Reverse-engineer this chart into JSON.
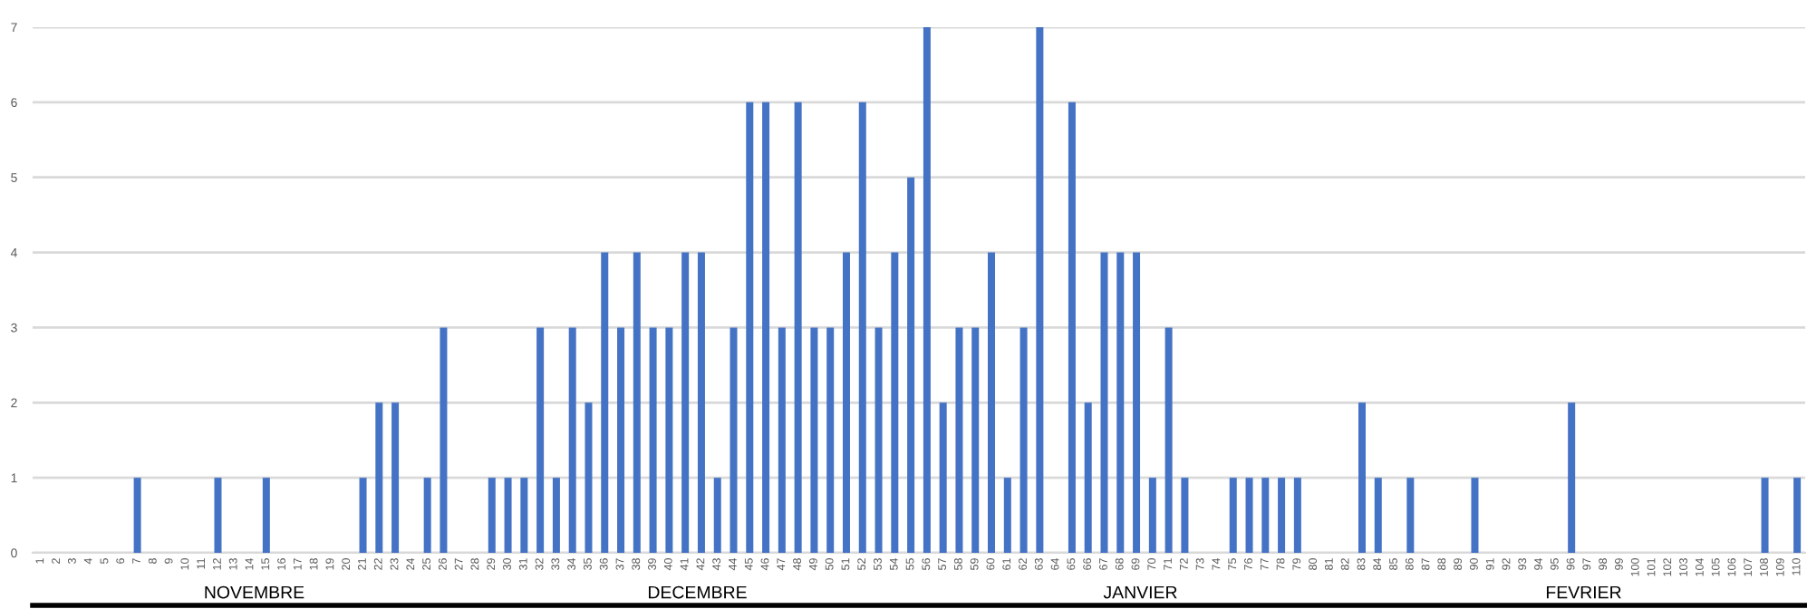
{
  "chart_data": {
    "type": "bar",
    "categories": [
      "1",
      "2",
      "3",
      "4",
      "5",
      "6",
      "7",
      "8",
      "9",
      "10",
      "11",
      "12",
      "13",
      "14",
      "15",
      "16",
      "17",
      "18",
      "19",
      "20",
      "21",
      "22",
      "23",
      "24",
      "25",
      "26",
      "27",
      "28",
      "29",
      "30",
      "31",
      "32",
      "33",
      "34",
      "35",
      "36",
      "37",
      "38",
      "39",
      "40",
      "41",
      "42",
      "43",
      "44",
      "45",
      "46",
      "47",
      "48",
      "49",
      "50",
      "51",
      "52",
      "53",
      "54",
      "55",
      "56",
      "57",
      "58",
      "59",
      "60",
      "61",
      "62",
      "63",
      "64",
      "65",
      "66",
      "67",
      "68",
      "69",
      "70",
      "71",
      "72",
      "73",
      "74",
      "75",
      "76",
      "77",
      "78",
      "79",
      "80",
      "81",
      "82",
      "83",
      "84",
      "85",
      "86",
      "87",
      "88",
      "89",
      "90",
      "91",
      "92",
      "93",
      "94",
      "95",
      "96",
      "97",
      "98",
      "99",
      "100",
      "101",
      "102",
      "103",
      "104",
      "105",
      "106",
      "107",
      "108",
      "109",
      "110"
    ],
    "values": [
      0,
      0,
      0,
      0,
      0,
      0,
      1,
      0,
      0,
      0,
      0,
      1,
      0,
      0,
      1,
      0,
      0,
      0,
      0,
      0,
      1,
      2,
      2,
      0,
      1,
      3,
      0,
      0,
      1,
      1,
      1,
      3,
      1,
      3,
      2,
      4,
      3,
      4,
      3,
      3,
      4,
      4,
      1,
      3,
      6,
      6,
      3,
      6,
      3,
      3,
      4,
      6,
      3,
      4,
      5,
      7,
      2,
      3,
      3,
      4,
      1,
      3,
      7,
      0,
      6,
      2,
      4,
      4,
      4,
      1,
      3,
      1,
      0,
      0,
      1,
      1,
      1,
      1,
      1,
      0,
      0,
      0,
      2,
      1,
      0,
      1,
      0,
      0,
      0,
      1,
      0,
      0,
      0,
      0,
      0,
      2,
      0,
      0,
      0,
      0,
      0,
      0,
      0,
      0,
      0,
      0,
      0,
      1,
      0,
      1
    ],
    "color": "#4472c4",
    "ylim": [
      0,
      7
    ],
    "yticks": [
      0,
      1,
      2,
      3,
      4,
      5,
      6,
      7
    ],
    "grid": "y",
    "annotations": [
      "NOVEMBRE",
      "DECEMBRE",
      "JANVIER",
      "FEVRIER"
    ]
  }
}
